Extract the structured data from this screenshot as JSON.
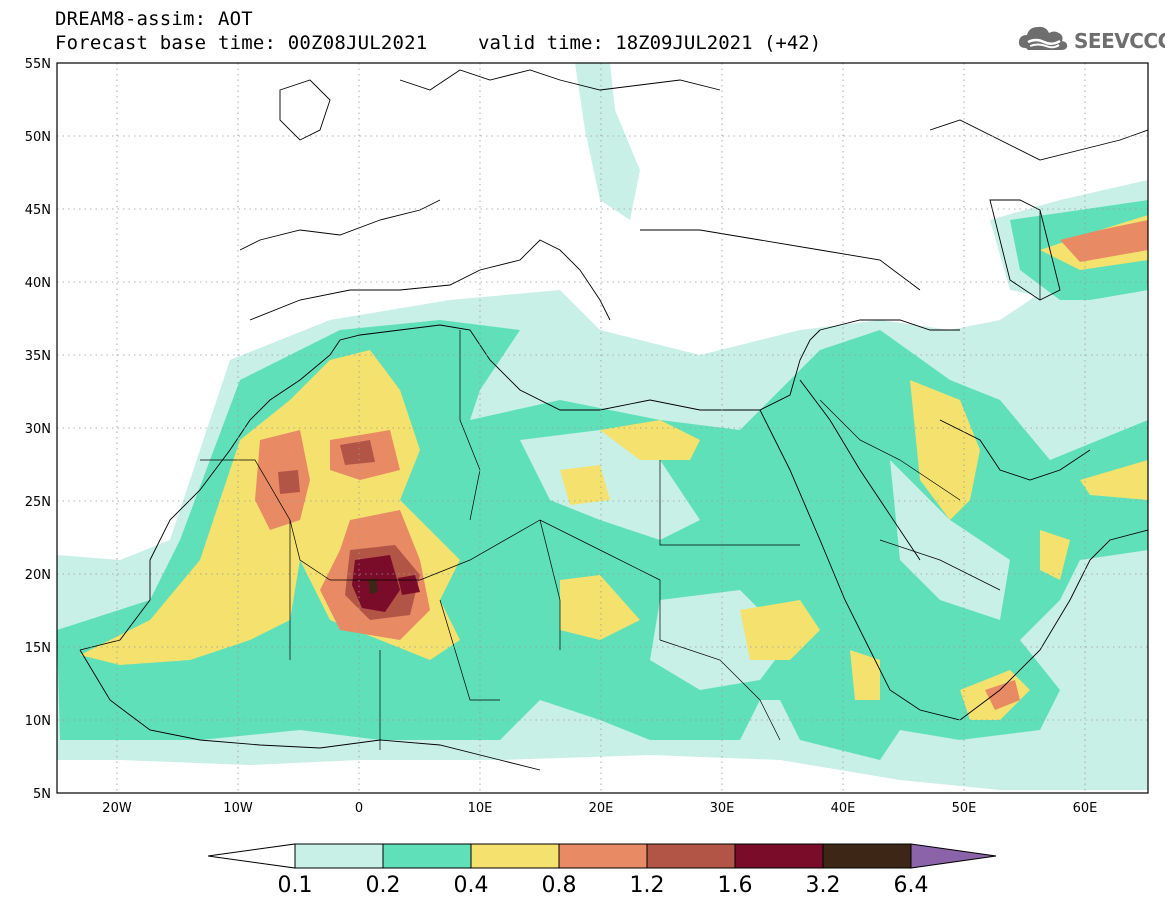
{
  "header": {
    "model_title": "DREAM8-assim: AOT",
    "forecast_base": "Forecast base time: 00Z08JUL2021",
    "valid_time": "valid time: 18Z09JUL2021 (+42)"
  },
  "logo": {
    "text": "SEEVCCC",
    "icon": "cloud-icon"
  },
  "map": {
    "lat_labels": [
      "55N",
      "50N",
      "45N",
      "40N",
      "35N",
      "30N",
      "25N",
      "20N",
      "15N",
      "10N",
      "5N"
    ],
    "lon_labels": [
      "20W",
      "10W",
      "0",
      "10E",
      "20E",
      "30E",
      "40E",
      "50E",
      "60E"
    ],
    "lon_range": [
      -25,
      65
    ],
    "lat_range": [
      5,
      55
    ],
    "grid": "dotted"
  },
  "colorbar": {
    "levels": [
      "0.1",
      "0.2",
      "0.4",
      "0.8",
      "1.2",
      "1.6",
      "3.2",
      "6.4"
    ],
    "colors": [
      "#ffffff",
      "#c8f0e6",
      "#5fe0b8",
      "#f5e16e",
      "#e88a64",
      "#b35546",
      "#7a0c2a",
      "#3d2616",
      "#8a63a8"
    ]
  }
}
